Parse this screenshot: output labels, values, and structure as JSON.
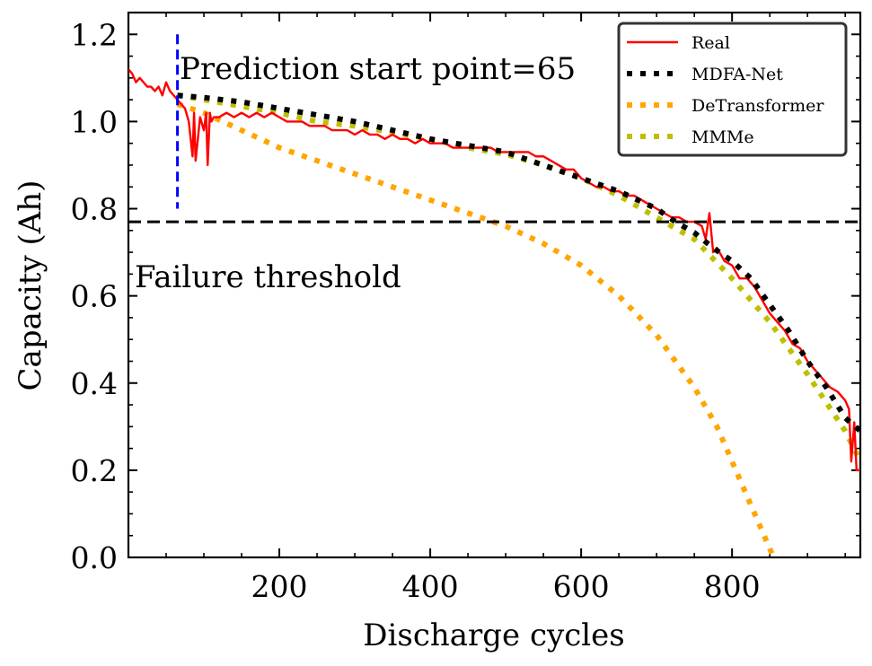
{
  "chart_data": {
    "type": "line",
    "title": "",
    "xlabel": "Discharge cycles",
    "ylabel": "Capacity (Ah)",
    "xlim": [
      0,
      970
    ],
    "ylim": [
      0.0,
      1.25
    ],
    "xticks": [
      200,
      400,
      600,
      800
    ],
    "xtick_labels": [
      "200",
      "400",
      "600",
      "800"
    ],
    "yticks": [
      0.0,
      0.2,
      0.4,
      0.6,
      0.8,
      1.0,
      1.2
    ],
    "ytick_labels": [
      "0.0",
      "0.2",
      "0.4",
      "0.6",
      "0.8",
      "1.0",
      "1.2"
    ],
    "legend_position": "top-right",
    "prediction_start": {
      "x": 65,
      "y_range": [
        0.8,
        1.2
      ],
      "label": "Prediction start point=65",
      "color": "#0000ff"
    },
    "failure_threshold": {
      "y": 0.77,
      "label": "Failure threshold",
      "color": "#000000"
    },
    "series": [
      {
        "name": "Real",
        "style": "solid",
        "color": "#ff0000",
        "x": [
          0,
          5,
          10,
          15,
          20,
          25,
          30,
          35,
          40,
          45,
          50,
          55,
          60,
          65,
          70,
          75,
          80,
          85,
          87,
          89,
          95,
          100,
          103,
          105,
          108,
          110,
          113,
          120,
          130,
          140,
          150,
          160,
          170,
          180,
          190,
          200,
          210,
          220,
          230,
          240,
          250,
          260,
          270,
          280,
          290,
          300,
          310,
          320,
          330,
          340,
          350,
          360,
          370,
          380,
          390,
          400,
          410,
          420,
          430,
          440,
          450,
          460,
          470,
          480,
          490,
          500,
          510,
          520,
          530,
          540,
          550,
          560,
          570,
          580,
          590,
          600,
          610,
          620,
          630,
          640,
          650,
          660,
          670,
          680,
          690,
          700,
          710,
          720,
          730,
          740,
          750,
          760,
          765,
          770,
          775,
          780,
          790,
          800,
          810,
          820,
          830,
          840,
          850,
          860,
          870,
          880,
          890,
          900,
          910,
          920,
          930,
          940,
          950,
          955,
          958,
          962,
          965,
          970
        ],
        "y": [
          1.12,
          1.11,
          1.09,
          1.1,
          1.09,
          1.08,
          1.08,
          1.07,
          1.08,
          1.06,
          1.09,
          1.07,
          1.06,
          1.05,
          1.04,
          1.03,
          1.0,
          0.92,
          1.02,
          0.91,
          1.01,
          0.98,
          1.02,
          0.9,
          1.02,
          1.0,
          1.01,
          1.01,
          1.02,
          1.01,
          1.02,
          1.01,
          1.02,
          1.01,
          1.02,
          1.01,
          1.0,
          1.0,
          1.0,
          0.99,
          0.99,
          0.99,
          0.98,
          0.98,
          0.98,
          0.97,
          0.98,
          0.97,
          0.97,
          0.96,
          0.97,
          0.96,
          0.96,
          0.95,
          0.96,
          0.95,
          0.95,
          0.95,
          0.94,
          0.94,
          0.94,
          0.94,
          0.94,
          0.94,
          0.93,
          0.93,
          0.93,
          0.93,
          0.93,
          0.92,
          0.92,
          0.91,
          0.9,
          0.89,
          0.89,
          0.87,
          0.86,
          0.85,
          0.85,
          0.84,
          0.84,
          0.83,
          0.83,
          0.82,
          0.81,
          0.8,
          0.79,
          0.78,
          0.78,
          0.77,
          0.77,
          0.76,
          0.73,
          0.79,
          0.7,
          0.71,
          0.68,
          0.67,
          0.64,
          0.64,
          0.62,
          0.59,
          0.56,
          0.54,
          0.52,
          0.49,
          0.48,
          0.45,
          0.43,
          0.41,
          0.39,
          0.38,
          0.36,
          0.34,
          0.22,
          0.31,
          0.2,
          0.2
        ]
      },
      {
        "name": "MDFA-Net",
        "style": "dotted",
        "color": "#000000",
        "x": [
          65,
          100,
          150,
          200,
          250,
          300,
          350,
          400,
          450,
          500,
          550,
          600,
          650,
          700,
          725,
          750,
          775,
          800,
          825,
          850,
          875,
          900,
          925,
          950,
          970
        ],
        "y": [
          1.06,
          1.055,
          1.045,
          1.03,
          1.015,
          1.0,
          0.98,
          0.96,
          0.945,
          0.93,
          0.9,
          0.87,
          0.84,
          0.8,
          0.77,
          0.745,
          0.71,
          0.68,
          0.64,
          0.58,
          0.52,
          0.45,
          0.39,
          0.32,
          0.29
        ]
      },
      {
        "name": "DeTransformer",
        "style": "dotted",
        "color": "#ffa500",
        "x": [
          65,
          100,
          150,
          200,
          250,
          300,
          350,
          400,
          450,
          500,
          550,
          600,
          650,
          700,
          750,
          780,
          800,
          820,
          840,
          850,
          855
        ],
        "y": [
          1.04,
          1.02,
          0.98,
          0.94,
          0.91,
          0.88,
          0.85,
          0.82,
          0.79,
          0.76,
          0.72,
          0.67,
          0.6,
          0.51,
          0.39,
          0.3,
          0.22,
          0.14,
          0.06,
          0.02,
          0.0
        ]
      },
      {
        "name": "MMMe",
        "style": "dotted",
        "color": "#bfbf00",
        "x": [
          65,
          100,
          150,
          200,
          250,
          300,
          350,
          400,
          450,
          500,
          550,
          600,
          650,
          700,
          750,
          800,
          850,
          900,
          950,
          970
        ],
        "y": [
          1.06,
          1.05,
          1.035,
          1.02,
          1.0,
          0.99,
          0.975,
          0.96,
          0.94,
          0.925,
          0.9,
          0.87,
          0.83,
          0.78,
          0.73,
          0.64,
          0.54,
          0.42,
          0.29,
          0.22
        ]
      }
    ]
  }
}
